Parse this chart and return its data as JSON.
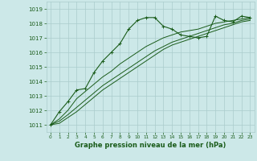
{
  "title": "Graphe pression niveau de la mer (hPa)",
  "bg_color": "#cce8e8",
  "grid_color": "#aacccc",
  "line_color": "#1a5c1a",
  "xlim": [
    -0.5,
    23.5
  ],
  "ylim": [
    1010.5,
    1019.5
  ],
  "yticks": [
    1011,
    1012,
    1013,
    1014,
    1015,
    1016,
    1017,
    1018,
    1019
  ],
  "xticks": [
    0,
    1,
    2,
    3,
    4,
    5,
    6,
    7,
    8,
    9,
    10,
    11,
    12,
    13,
    14,
    15,
    16,
    17,
    18,
    19,
    20,
    21,
    22,
    23
  ],
  "series1_x": [
    0,
    1,
    2,
    3,
    4,
    5,
    6,
    7,
    8,
    9,
    10,
    11,
    12,
    13,
    14,
    15,
    16,
    17,
    18,
    19,
    20,
    21,
    22,
    23
  ],
  "series1_y": [
    1011.0,
    1011.9,
    1012.6,
    1013.4,
    1013.5,
    1014.6,
    1015.4,
    1016.0,
    1016.6,
    1017.6,
    1018.2,
    1018.4,
    1018.4,
    1017.8,
    1017.6,
    1017.2,
    1017.1,
    1017.0,
    1017.1,
    1018.5,
    1018.2,
    1018.1,
    1018.5,
    1018.4
  ],
  "series2_x": [
    0,
    1,
    2,
    3,
    4,
    5,
    6,
    7,
    8,
    9,
    10,
    11,
    12,
    13,
    14,
    15,
    16,
    17,
    18,
    19,
    20,
    21,
    22,
    23
  ],
  "series2_y": [
    1011.0,
    1011.4,
    1012.0,
    1012.8,
    1013.3,
    1013.8,
    1014.3,
    1014.7,
    1015.2,
    1015.6,
    1016.0,
    1016.4,
    1016.7,
    1017.0,
    1017.2,
    1017.4,
    1017.5,
    1017.6,
    1017.8,
    1018.0,
    1018.1,
    1018.2,
    1018.3,
    1018.4
  ],
  "series3_x": [
    0,
    1,
    2,
    3,
    4,
    5,
    6,
    7,
    8,
    9,
    10,
    11,
    12,
    13,
    14,
    15,
    16,
    17,
    18,
    19,
    20,
    21,
    22,
    23
  ],
  "series3_y": [
    1011.0,
    1011.25,
    1011.7,
    1012.2,
    1012.7,
    1013.2,
    1013.7,
    1014.1,
    1014.5,
    1014.9,
    1015.3,
    1015.7,
    1016.1,
    1016.4,
    1016.7,
    1016.9,
    1017.1,
    1017.3,
    1017.5,
    1017.7,
    1017.9,
    1018.0,
    1018.2,
    1018.3
  ],
  "series4_x": [
    0,
    1,
    2,
    3,
    4,
    5,
    6,
    7,
    8,
    9,
    10,
    11,
    12,
    13,
    14,
    15,
    16,
    17,
    18,
    19,
    20,
    21,
    22,
    23
  ],
  "series4_y": [
    1011.0,
    1011.1,
    1011.5,
    1011.9,
    1012.4,
    1012.9,
    1013.4,
    1013.8,
    1014.2,
    1014.6,
    1015.0,
    1015.4,
    1015.8,
    1016.2,
    1016.5,
    1016.7,
    1016.9,
    1017.1,
    1017.3,
    1017.5,
    1017.7,
    1017.9,
    1018.1,
    1018.2
  ]
}
